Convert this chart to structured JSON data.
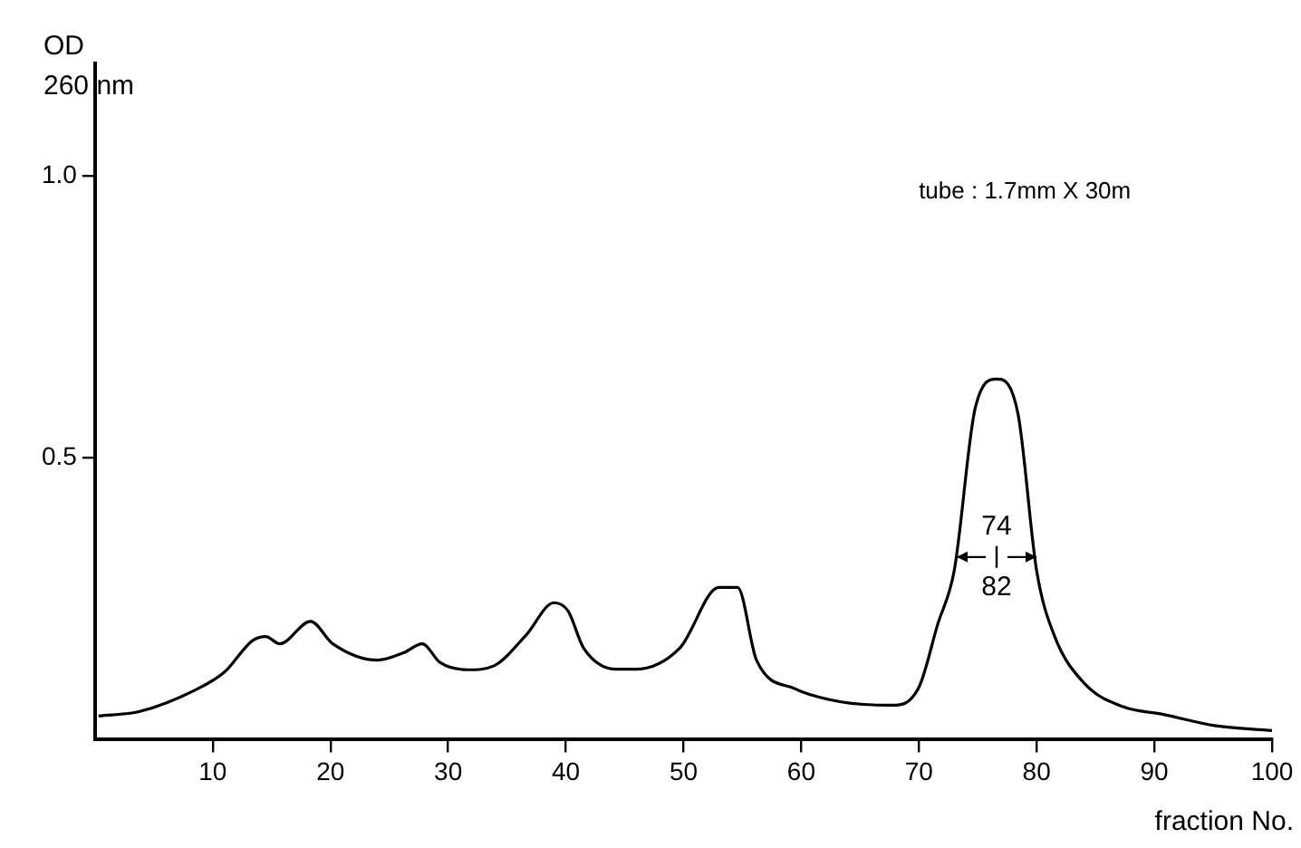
{
  "chart_data": {
    "type": "line",
    "ylabel": "OD\n260 nm",
    "xlabel": "fraction No.",
    "x": [
      0.3,
      3.8,
      8.7,
      11,
      13.4,
      14.5,
      15.7,
      18.3,
      20.2,
      24,
      26.2,
      27.8,
      29.3,
      31.7,
      33.9,
      36.6,
      39,
      40.2,
      41.5,
      44.3,
      45.9,
      49.7,
      53,
      54.6,
      56.2,
      59.5,
      63.4,
      67.7,
      70,
      71.6,
      73,
      74.8,
      76.6,
      78.4,
      80,
      81.5,
      84.1,
      87.4,
      90.7,
      95.1,
      100
    ],
    "series": [
      {
        "color": "#000000",
        "values": [
          0.042,
          0.05,
          0.09,
          0.12,
          0.176,
          0.183,
          0.17,
          0.21,
          0.17,
          0.141,
          0.154,
          0.17,
          0.137,
          0.124,
          0.131,
          0.185,
          0.243,
          0.228,
          0.163,
          0.125,
          0.125,
          0.163,
          0.27,
          0.27,
          0.141,
          0.09,
          0.067,
          0.061,
          0.093,
          0.205,
          0.3,
          0.59,
          0.64,
          0.58,
          0.3,
          0.185,
          0.099,
          0.058,
          0.045,
          0.025,
          0.016
        ]
      }
    ],
    "xlim": [
      0,
      100
    ],
    "xticks": [
      10,
      20,
      30,
      40,
      50,
      60,
      70,
      80,
      90,
      100
    ],
    "ylim": [
      0,
      1.2
    ],
    "yticks": [
      {
        "value": 0.5,
        "label": "0.5"
      },
      {
        "value": 1,
        "label": "1.0"
      }
    ],
    "annotations": [
      "tube : 1.7mm X 30m",
      "74",
      "82"
    ],
    "grid": false,
    "legend": false,
    "marker": "none",
    "line_style": "solid"
  }
}
